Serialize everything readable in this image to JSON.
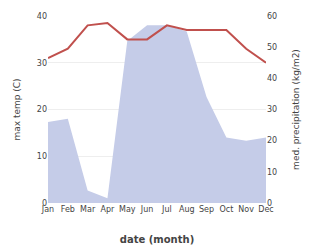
{
  "chart_data": {
    "type": "line",
    "categories": [
      "Jan",
      "Feb",
      "Mar",
      "Apr",
      "May",
      "Jun",
      "Jul",
      "Aug",
      "Sep",
      "Oct",
      "Nov",
      "Dec"
    ],
    "series": [
      {
        "type": "line",
        "color": "#c0504d",
        "values": [
          31,
          33,
          38,
          38.5,
          35,
          35,
          38,
          37,
          37,
          37,
          33,
          30
        ]
      },
      {
        "type": "area",
        "axis": "y2",
        "color": "#c5cce8",
        "values": [
          26,
          27,
          4,
          1.5,
          52,
          57,
          57,
          55,
          34,
          21,
          20,
          21
        ]
      }
    ],
    "xlabel": "date (month)",
    "ylabel": "max temp (C)",
    "y2label": "med. precipitation (kg/m2)",
    "ylim": [
      0,
      40
    ],
    "yticks": [
      0,
      10,
      20,
      30,
      40
    ],
    "y2lim": [
      0,
      60
    ],
    "y2ticks": [
      0,
      10,
      20,
      30,
      40,
      50,
      60
    ],
    "grid": "y"
  }
}
